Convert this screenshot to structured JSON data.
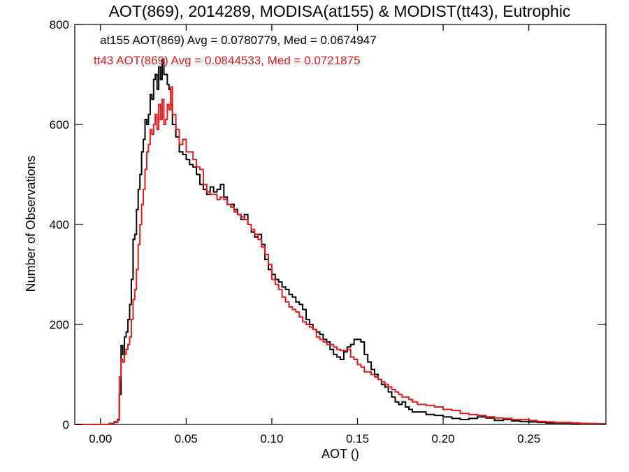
{
  "chart_data": {
    "type": "line",
    "title": "AOT(869), 2014289, MODISA(at155) & MODIST(tt43), Eutrophic",
    "xlabel": "AOT ()",
    "ylabel": "Number of Observations",
    "xlim": [
      -0.015,
      0.295
    ],
    "ylim": [
      0,
      800
    ],
    "x_ticks": [
      0.0,
      0.05,
      0.1,
      0.15,
      0.2,
      0.25
    ],
    "x_tick_labels": [
      "0.00",
      "0.05",
      "0.10",
      "0.15",
      "0.20",
      "0.25"
    ],
    "y_ticks": [
      0,
      200,
      400,
      600,
      800
    ],
    "y_tick_labels": [
      "0",
      "200",
      "400",
      "600",
      "800"
    ],
    "grid": false,
    "annotations": [
      {
        "text": "at155 AOT(869) Avg = 0.0780779, Med = 0.0674947",
        "color": "#000000"
      },
      {
        "text": "tt43 AOT(869) Avg = 0.0844533, Med = 0.0721875",
        "color": "#e8191b"
      }
    ],
    "series": [
      {
        "name": "at155",
        "color": "#000000",
        "x": [
          -0.015,
          0.0,
          0.005,
          0.008,
          0.01,
          0.011,
          0.012,
          0.013,
          0.014,
          0.015,
          0.016,
          0.017,
          0.018,
          0.019,
          0.02,
          0.021,
          0.022,
          0.023,
          0.024,
          0.025,
          0.026,
          0.027,
          0.028,
          0.029,
          0.03,
          0.031,
          0.032,
          0.033,
          0.034,
          0.035,
          0.036,
          0.037,
          0.038,
          0.039,
          0.04,
          0.041,
          0.042,
          0.044,
          0.046,
          0.048,
          0.05,
          0.052,
          0.054,
          0.056,
          0.058,
          0.06,
          0.062,
          0.064,
          0.066,
          0.068,
          0.07,
          0.072,
          0.074,
          0.076,
          0.078,
          0.08,
          0.082,
          0.084,
          0.086,
          0.088,
          0.09,
          0.092,
          0.094,
          0.096,
          0.098,
          0.1,
          0.102,
          0.104,
          0.106,
          0.108,
          0.11,
          0.112,
          0.114,
          0.116,
          0.118,
          0.12,
          0.122,
          0.124,
          0.126,
          0.128,
          0.13,
          0.132,
          0.134,
          0.136,
          0.138,
          0.14,
          0.142,
          0.144,
          0.146,
          0.148,
          0.15,
          0.152,
          0.154,
          0.156,
          0.158,
          0.16,
          0.162,
          0.164,
          0.166,
          0.168,
          0.17,
          0.172,
          0.174,
          0.176,
          0.178,
          0.18,
          0.182,
          0.185,
          0.19,
          0.195,
          0.2,
          0.205,
          0.21,
          0.215,
          0.22,
          0.225,
          0.23,
          0.235,
          0.24,
          0.245,
          0.25,
          0.255,
          0.26,
          0.265,
          0.27,
          0.275,
          0.28,
          0.285,
          0.29,
          0.295
        ],
        "values": [
          0,
          0,
          2,
          5,
          10,
          60,
          158,
          140,
          175,
          185,
          210,
          240,
          290,
          370,
          380,
          430,
          470,
          500,
          545,
          570,
          610,
          600,
          620,
          660,
          650,
          690,
          700,
          670,
          715,
          690,
          730,
          700,
          700,
          680,
          670,
          640,
          600,
          575,
          545,
          540,
          530,
          520,
          515,
          500,
          480,
          470,
          460,
          475,
          465,
          470,
          480,
          455,
          440,
          440,
          430,
          420,
          410,
          420,
          400,
          385,
          375,
          380,
          360,
          330,
          310,
          300,
          290,
          285,
          275,
          270,
          260,
          255,
          245,
          240,
          230,
          210,
          200,
          190,
          185,
          180,
          170,
          165,
          150,
          140,
          135,
          130,
          145,
          155,
          160,
          170,
          170,
          165,
          140,
          125,
          110,
          100,
          90,
          80,
          75,
          65,
          55,
          45,
          40,
          45,
          35,
          30,
          25,
          25,
          20,
          18,
          15,
          12,
          10,
          12,
          15,
          13,
          8,
          10,
          7,
          6,
          5,
          4,
          3,
          3,
          3,
          2,
          2,
          1,
          1,
          1
        ]
      },
      {
        "name": "tt43",
        "color": "#e8191b",
        "x": [
          -0.015,
          0.0,
          0.005,
          0.008,
          0.01,
          0.011,
          0.012,
          0.013,
          0.014,
          0.015,
          0.016,
          0.017,
          0.018,
          0.019,
          0.02,
          0.021,
          0.022,
          0.023,
          0.024,
          0.025,
          0.026,
          0.027,
          0.028,
          0.029,
          0.03,
          0.031,
          0.032,
          0.033,
          0.034,
          0.035,
          0.036,
          0.037,
          0.038,
          0.039,
          0.04,
          0.041,
          0.042,
          0.044,
          0.046,
          0.048,
          0.05,
          0.052,
          0.054,
          0.056,
          0.058,
          0.06,
          0.062,
          0.064,
          0.066,
          0.068,
          0.07,
          0.072,
          0.074,
          0.076,
          0.078,
          0.08,
          0.082,
          0.084,
          0.086,
          0.088,
          0.09,
          0.092,
          0.094,
          0.096,
          0.098,
          0.1,
          0.102,
          0.104,
          0.106,
          0.108,
          0.11,
          0.112,
          0.114,
          0.116,
          0.118,
          0.12,
          0.122,
          0.124,
          0.126,
          0.128,
          0.13,
          0.132,
          0.134,
          0.136,
          0.138,
          0.14,
          0.142,
          0.144,
          0.146,
          0.148,
          0.15,
          0.152,
          0.154,
          0.156,
          0.158,
          0.16,
          0.162,
          0.164,
          0.166,
          0.168,
          0.17,
          0.172,
          0.174,
          0.176,
          0.178,
          0.18,
          0.182,
          0.185,
          0.19,
          0.195,
          0.2,
          0.205,
          0.21,
          0.215,
          0.22,
          0.225,
          0.23,
          0.235,
          0.24,
          0.245,
          0.25,
          0.255,
          0.26,
          0.265,
          0.27,
          0.275,
          0.28,
          0.285,
          0.29,
          0.295
        ],
        "values": [
          0,
          0,
          2,
          4,
          8,
          95,
          130,
          125,
          140,
          150,
          160,
          175,
          210,
          250,
          270,
          310,
          360,
          400,
          440,
          470,
          510,
          545,
          560,
          590,
          580,
          600,
          620,
          590,
          640,
          610,
          650,
          600,
          610,
          640,
          630,
          675,
          620,
          590,
          560,
          570,
          545,
          545,
          530,
          515,
          510,
          480,
          465,
          460,
          460,
          450,
          455,
          450,
          440,
          435,
          425,
          420,
          415,
          410,
          400,
          390,
          380,
          370,
          355,
          340,
          320,
          290,
          280,
          270,
          255,
          245,
          235,
          230,
          225,
          215,
          205,
          200,
          195,
          190,
          175,
          170,
          165,
          160,
          160,
          155,
          150,
          148,
          148,
          150,
          135,
          130,
          120,
          115,
          105,
          105,
          100,
          95,
          90,
          85,
          80,
          75,
          70,
          65,
          60,
          55,
          55,
          50,
          45,
          40,
          38,
          35,
          30,
          28,
          22,
          20,
          18,
          15,
          13,
          12,
          10,
          10,
          8,
          6,
          5,
          4,
          4,
          3,
          2,
          2,
          1,
          1
        ]
      }
    ]
  }
}
